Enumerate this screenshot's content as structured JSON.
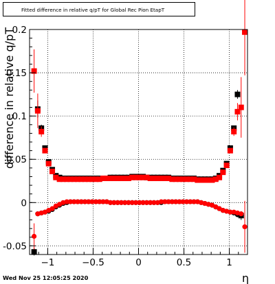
{
  "title": "Fitted difference in relative q/pT for Global Rec Pion EtapT",
  "footer": "Wed Nov 25 12:05:25 2020",
  "chart_data": {
    "type": "scatter",
    "title": "Fitted difference in relative q/pT for Global Rec Pion EtapT",
    "xlabel": "η",
    "ylabel": "difference in relative q/pT",
    "xlim": [
      -1.2,
      1.2
    ],
    "ylim": [
      -0.06,
      0.2
    ],
    "x_ticks": [
      -1,
      -0.5,
      0,
      0.5,
      1
    ],
    "x_tick_labels": [
      "−1",
      "−0.5",
      "0",
      "0.5",
      "1"
    ],
    "y_ticks": [
      -0.05,
      0,
      0.05,
      0.1,
      0.15,
      0.2
    ],
    "y_tick_labels": [
      "-0.05",
      "0",
      "0.05",
      "0.1",
      "0.15",
      "0.2"
    ],
    "grid": true,
    "colors": {
      "black_series": "#000000",
      "red_series": "#ff0000"
    },
    "series": [
      {
        "color": "#000000",
        "points": [
          {
            "x": -1.15,
            "y": -0.057,
            "err": 0.004
          },
          {
            "x": -1.11,
            "y": 0.108,
            "err": 0.01
          },
          {
            "x": -1.07,
            "y": 0.086,
            "err": 0.004
          },
          {
            "x": -1.03,
            "y": 0.063,
            "err": 0.002
          },
          {
            "x": -0.99,
            "y": 0.047,
            "err": 0.0015
          },
          {
            "x": -0.95,
            "y": 0.038,
            "err": 0.001
          },
          {
            "x": -0.91,
            "y": 0.031,
            "err": 0.001
          },
          {
            "x": -0.87,
            "y": 0.029,
            "err": 0.001
          },
          {
            "x": -0.83,
            "y": 0.028
          },
          {
            "x": -0.79,
            "y": 0.028
          },
          {
            "x": -0.75,
            "y": 0.028
          },
          {
            "x": -0.71,
            "y": 0.028
          },
          {
            "x": -0.67,
            "y": 0.028
          },
          {
            "x": -0.63,
            "y": 0.028
          },
          {
            "x": -0.59,
            "y": 0.028
          },
          {
            "x": -0.55,
            "y": 0.028
          },
          {
            "x": -0.51,
            "y": 0.028
          },
          {
            "x": -0.47,
            "y": 0.028
          },
          {
            "x": -0.43,
            "y": 0.028
          },
          {
            "x": -0.39,
            "y": 0.028
          },
          {
            "x": -0.35,
            "y": 0.028
          },
          {
            "x": -0.31,
            "y": 0.029
          },
          {
            "x": -0.27,
            "y": 0.029
          },
          {
            "x": -0.23,
            "y": 0.029
          },
          {
            "x": -0.19,
            "y": 0.029
          },
          {
            "x": -0.15,
            "y": 0.029
          },
          {
            "x": -0.11,
            "y": 0.029
          },
          {
            "x": -0.07,
            "y": 0.03
          },
          {
            "x": -0.03,
            "y": 0.03
          },
          {
            "x": 0.01,
            "y": 0.03
          },
          {
            "x": 0.05,
            "y": 0.03
          },
          {
            "x": 0.09,
            "y": 0.029
          },
          {
            "x": 0.13,
            "y": 0.029
          },
          {
            "x": 0.17,
            "y": 0.029
          },
          {
            "x": 0.21,
            "y": 0.029
          },
          {
            "x": 0.25,
            "y": 0.029
          },
          {
            "x": 0.29,
            "y": 0.029
          },
          {
            "x": 0.33,
            "y": 0.029
          },
          {
            "x": 0.37,
            "y": 0.028
          },
          {
            "x": 0.41,
            "y": 0.028
          },
          {
            "x": 0.45,
            "y": 0.028
          },
          {
            "x": 0.49,
            "y": 0.028
          },
          {
            "x": 0.53,
            "y": 0.028
          },
          {
            "x": 0.57,
            "y": 0.028
          },
          {
            "x": 0.61,
            "y": 0.028
          },
          {
            "x": 0.65,
            "y": 0.027
          },
          {
            "x": 0.69,
            "y": 0.027
          },
          {
            "x": 0.73,
            "y": 0.027
          },
          {
            "x": 0.77,
            "y": 0.027
          },
          {
            "x": 0.81,
            "y": 0.027
          },
          {
            "x": 0.85,
            "y": 0.028,
            "err": 0.001
          },
          {
            "x": 0.89,
            "y": 0.031,
            "err": 0.001
          },
          {
            "x": 0.93,
            "y": 0.037,
            "err": 0.001
          },
          {
            "x": 0.97,
            "y": 0.045,
            "err": 0.0015
          },
          {
            "x": 1.01,
            "y": 0.063,
            "err": 0.002
          },
          {
            "x": 1.05,
            "y": 0.086,
            "err": 0.003
          },
          {
            "x": 1.09,
            "y": 0.125,
            "err": 0.005
          },
          {
            "x": 1.13,
            "y": -0.015,
            "err": 0.005
          }
        ]
      },
      {
        "color": "#ff0000",
        "points": [
          {
            "x": -1.15,
            "y": 0.152,
            "err": 0.025
          },
          {
            "x": -1.11,
            "y": 0.106,
            "err": 0.02
          },
          {
            "x": -1.07,
            "y": 0.082,
            "err": 0.006
          },
          {
            "x": -1.03,
            "y": 0.06,
            "err": 0.003
          },
          {
            "x": -0.99,
            "y": 0.045,
            "err": 0.002
          },
          {
            "x": -0.95,
            "y": 0.036,
            "err": 0.0015
          },
          {
            "x": -0.91,
            "y": 0.029,
            "err": 0.001
          },
          {
            "x": -0.87,
            "y": 0.027,
            "err": 0.001
          },
          {
            "x": -0.83,
            "y": 0.027
          },
          {
            "x": -0.79,
            "y": 0.027
          },
          {
            "x": -0.75,
            "y": 0.027
          },
          {
            "x": -0.71,
            "y": 0.027
          },
          {
            "x": -0.67,
            "y": 0.027
          },
          {
            "x": -0.63,
            "y": 0.027
          },
          {
            "x": -0.59,
            "y": 0.027
          },
          {
            "x": -0.55,
            "y": 0.027
          },
          {
            "x": -0.51,
            "y": 0.027
          },
          {
            "x": -0.47,
            "y": 0.027
          },
          {
            "x": -0.43,
            "y": 0.027
          },
          {
            "x": -0.39,
            "y": 0.028
          },
          {
            "x": -0.35,
            "y": 0.028
          },
          {
            "x": -0.31,
            "y": 0.028
          },
          {
            "x": -0.27,
            "y": 0.028
          },
          {
            "x": -0.23,
            "y": 0.028
          },
          {
            "x": -0.19,
            "y": 0.028
          },
          {
            "x": -0.15,
            "y": 0.028
          },
          {
            "x": -0.11,
            "y": 0.028
          },
          {
            "x": -0.07,
            "y": 0.029
          },
          {
            "x": -0.03,
            "y": 0.029
          },
          {
            "x": 0.01,
            "y": 0.029
          },
          {
            "x": 0.05,
            "y": 0.029
          },
          {
            "x": 0.09,
            "y": 0.029
          },
          {
            "x": 0.13,
            "y": 0.028
          },
          {
            "x": 0.17,
            "y": 0.028
          },
          {
            "x": 0.21,
            "y": 0.028
          },
          {
            "x": 0.25,
            "y": 0.028
          },
          {
            "x": 0.29,
            "y": 0.028
          },
          {
            "x": 0.33,
            "y": 0.028
          },
          {
            "x": 0.37,
            "y": 0.027
          },
          {
            "x": 0.41,
            "y": 0.027
          },
          {
            "x": 0.45,
            "y": 0.027
          },
          {
            "x": 0.49,
            "y": 0.027
          },
          {
            "x": 0.53,
            "y": 0.027
          },
          {
            "x": 0.57,
            "y": 0.027
          },
          {
            "x": 0.61,
            "y": 0.027
          },
          {
            "x": 0.65,
            "y": 0.026
          },
          {
            "x": 0.69,
            "y": 0.026
          },
          {
            "x": 0.73,
            "y": 0.026
          },
          {
            "x": 0.77,
            "y": 0.026
          },
          {
            "x": 0.81,
            "y": 0.026
          },
          {
            "x": 0.85,
            "y": 0.027,
            "err": 0.001
          },
          {
            "x": 0.89,
            "y": 0.029,
            "err": 0.001
          },
          {
            "x": 0.93,
            "y": 0.035,
            "err": 0.0015
          },
          {
            "x": 0.97,
            "y": 0.043,
            "err": 0.002
          },
          {
            "x": 1.01,
            "y": 0.06,
            "err": 0.003
          },
          {
            "x": 1.05,
            "y": 0.082,
            "err": 0.005
          },
          {
            "x": 1.09,
            "y": 0.105,
            "err": 0.01
          },
          {
            "x": 1.13,
            "y": 0.11,
            "err": 0.035
          },
          {
            "x": 1.17,
            "y": 0.197,
            "err": 0.05
          }
        ]
      },
      {
        "color": "#000000",
        "points": [
          {
            "x": -1.15,
            "y": -0.057,
            "err": 0.004
          },
          {
            "x": -1.11,
            "y": -0.013,
            "err": 0.002
          },
          {
            "x": -1.07,
            "y": -0.012,
            "err": 0.001
          },
          {
            "x": -1.03,
            "y": -0.011
          },
          {
            "x": -0.99,
            "y": -0.01
          },
          {
            "x": -0.95,
            "y": -0.008
          },
          {
            "x": -0.91,
            "y": -0.005
          },
          {
            "x": -0.87,
            "y": -0.003
          },
          {
            "x": -0.83,
            "y": -0.001
          },
          {
            "x": -0.79,
            "y": 0.0
          },
          {
            "x": -0.75,
            "y": 0.001
          },
          {
            "x": -0.71,
            "y": 0.001
          },
          {
            "x": -0.67,
            "y": 0.001
          },
          {
            "x": -0.63,
            "y": 0.001
          },
          {
            "x": -0.59,
            "y": 0.001
          },
          {
            "x": -0.55,
            "y": 0.001
          },
          {
            "x": -0.51,
            "y": 0.001
          },
          {
            "x": -0.47,
            "y": 0.001
          },
          {
            "x": -0.43,
            "y": 0.001
          },
          {
            "x": -0.39,
            "y": 0.001
          },
          {
            "x": -0.35,
            "y": 0.001
          },
          {
            "x": -0.31,
            "y": 0.0
          },
          {
            "x": -0.27,
            "y": 0.0
          },
          {
            "x": -0.23,
            "y": 0.0
          },
          {
            "x": -0.19,
            "y": 0.0
          },
          {
            "x": -0.15,
            "y": 0.0
          },
          {
            "x": -0.11,
            "y": 0.0
          },
          {
            "x": -0.07,
            "y": 0.0
          },
          {
            "x": -0.03,
            "y": 0.0
          },
          {
            "x": 0.01,
            "y": 0.0
          },
          {
            "x": 0.05,
            "y": 0.0
          },
          {
            "x": 0.09,
            "y": 0.0
          },
          {
            "x": 0.13,
            "y": 0.0
          },
          {
            "x": 0.17,
            "y": 0.0
          },
          {
            "x": 0.21,
            "y": 0.0
          },
          {
            "x": 0.25,
            "y": 0.0
          },
          {
            "x": 0.29,
            "y": 0.001
          },
          {
            "x": 0.33,
            "y": 0.001
          },
          {
            "x": 0.37,
            "y": 0.001
          },
          {
            "x": 0.41,
            "y": 0.001
          },
          {
            "x": 0.45,
            "y": 0.001
          },
          {
            "x": 0.49,
            "y": 0.001
          },
          {
            "x": 0.53,
            "y": 0.001
          },
          {
            "x": 0.57,
            "y": 0.001
          },
          {
            "x": 0.61,
            "y": 0.001
          },
          {
            "x": 0.65,
            "y": 0.001
          },
          {
            "x": 0.69,
            "y": 0.0
          },
          {
            "x": 0.73,
            "y": -0.001
          },
          {
            "x": 0.77,
            "y": -0.002
          },
          {
            "x": 0.81,
            "y": -0.003
          },
          {
            "x": 0.85,
            "y": -0.005
          },
          {
            "x": 0.89,
            "y": -0.007
          },
          {
            "x": 0.93,
            "y": -0.009
          },
          {
            "x": 0.97,
            "y": -0.01
          },
          {
            "x": 1.01,
            "y": -0.011
          },
          {
            "x": 1.05,
            "y": -0.012
          },
          {
            "x": 1.09,
            "y": -0.014
          },
          {
            "x": 1.13,
            "y": -0.015
          }
        ]
      },
      {
        "color": "#ff0000",
        "points": [
          {
            "x": -1.15,
            "y": -0.039,
            "err": 0.015
          },
          {
            "x": -1.11,
            "y": -0.013,
            "err": 0.002
          },
          {
            "x": -1.07,
            "y": -0.012,
            "err": 0.001
          },
          {
            "x": -1.03,
            "y": -0.011
          },
          {
            "x": -0.99,
            "y": -0.009
          },
          {
            "x": -0.95,
            "y": -0.007
          },
          {
            "x": -0.91,
            "y": -0.004
          },
          {
            "x": -0.87,
            "y": -0.002
          },
          {
            "x": -0.83,
            "y": 0.0
          },
          {
            "x": -0.79,
            "y": 0.001
          },
          {
            "x": -0.75,
            "y": 0.001
          },
          {
            "x": -0.71,
            "y": 0.001
          },
          {
            "x": -0.67,
            "y": 0.001
          },
          {
            "x": -0.63,
            "y": 0.001
          },
          {
            "x": -0.59,
            "y": 0.001
          },
          {
            "x": -0.55,
            "y": 0.001
          },
          {
            "x": -0.51,
            "y": 0.001
          },
          {
            "x": -0.47,
            "y": 0.001
          },
          {
            "x": -0.43,
            "y": 0.001
          },
          {
            "x": -0.39,
            "y": 0.001
          },
          {
            "x": -0.35,
            "y": 0.001
          },
          {
            "x": -0.31,
            "y": 0.0
          },
          {
            "x": -0.27,
            "y": 0.0
          },
          {
            "x": -0.23,
            "y": 0.0
          },
          {
            "x": -0.19,
            "y": 0.0
          },
          {
            "x": -0.15,
            "y": 0.0
          },
          {
            "x": -0.11,
            "y": 0.0
          },
          {
            "x": -0.07,
            "y": 0.0
          },
          {
            "x": -0.03,
            "y": 0.0
          },
          {
            "x": 0.01,
            "y": 0.0
          },
          {
            "x": 0.05,
            "y": 0.0
          },
          {
            "x": 0.09,
            "y": 0.0
          },
          {
            "x": 0.13,
            "y": 0.0
          },
          {
            "x": 0.17,
            "y": 0.0
          },
          {
            "x": 0.21,
            "y": 0.0
          },
          {
            "x": 0.25,
            "y": 0.001
          },
          {
            "x": 0.29,
            "y": 0.001
          },
          {
            "x": 0.33,
            "y": 0.001
          },
          {
            "x": 0.37,
            "y": 0.001
          },
          {
            "x": 0.41,
            "y": 0.001
          },
          {
            "x": 0.45,
            "y": 0.001
          },
          {
            "x": 0.49,
            "y": 0.001
          },
          {
            "x": 0.53,
            "y": 0.001
          },
          {
            "x": 0.57,
            "y": 0.001
          },
          {
            "x": 0.61,
            "y": 0.001
          },
          {
            "x": 0.65,
            "y": 0.001
          },
          {
            "x": 0.69,
            "y": 0.0
          },
          {
            "x": 0.73,
            "y": -0.001
          },
          {
            "x": 0.77,
            "y": -0.002
          },
          {
            "x": 0.81,
            "y": -0.003
          },
          {
            "x": 0.85,
            "y": -0.005
          },
          {
            "x": 0.89,
            "y": -0.007
          },
          {
            "x": 0.93,
            "y": -0.009
          },
          {
            "x": 0.97,
            "y": -0.01
          },
          {
            "x": 1.01,
            "y": -0.011
          },
          {
            "x": 1.05,
            "y": -0.011
          },
          {
            "x": 1.09,
            "y": -0.012
          },
          {
            "x": 1.13,
            "y": -0.013
          },
          {
            "x": 1.17,
            "y": -0.028,
            "err": 0.03
          }
        ]
      }
    ]
  }
}
